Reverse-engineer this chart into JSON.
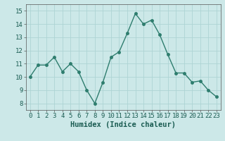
{
  "x": [
    0,
    1,
    2,
    3,
    4,
    5,
    6,
    7,
    8,
    9,
    10,
    11,
    12,
    13,
    14,
    15,
    16,
    17,
    18,
    19,
    20,
    21,
    22,
    23
  ],
  "y": [
    10.0,
    10.9,
    10.9,
    11.5,
    10.4,
    11.0,
    10.4,
    9.0,
    8.0,
    9.6,
    11.5,
    11.9,
    13.3,
    14.8,
    14.0,
    14.3,
    13.2,
    11.7,
    10.3,
    10.3,
    9.6,
    9.7,
    9.0,
    8.5
  ],
  "line_color": "#2e7d6e",
  "marker_color": "#2e7d6e",
  "bg_color": "#cce8e8",
  "grid_color": "#aed4d4",
  "xlabel": "Humidex (Indice chaleur)",
  "xlim": [
    -0.5,
    23.5
  ],
  "ylim": [
    7.5,
    15.5
  ],
  "yticks": [
    8,
    9,
    10,
    11,
    12,
    13,
    14,
    15
  ],
  "xticks": [
    0,
    1,
    2,
    3,
    4,
    5,
    6,
    7,
    8,
    9,
    10,
    11,
    12,
    13,
    14,
    15,
    16,
    17,
    18,
    19,
    20,
    21,
    22,
    23
  ],
  "tick_fontsize": 6.5,
  "xlabel_fontsize": 7.5,
  "marker_size": 2.5,
  "line_width": 1.0
}
